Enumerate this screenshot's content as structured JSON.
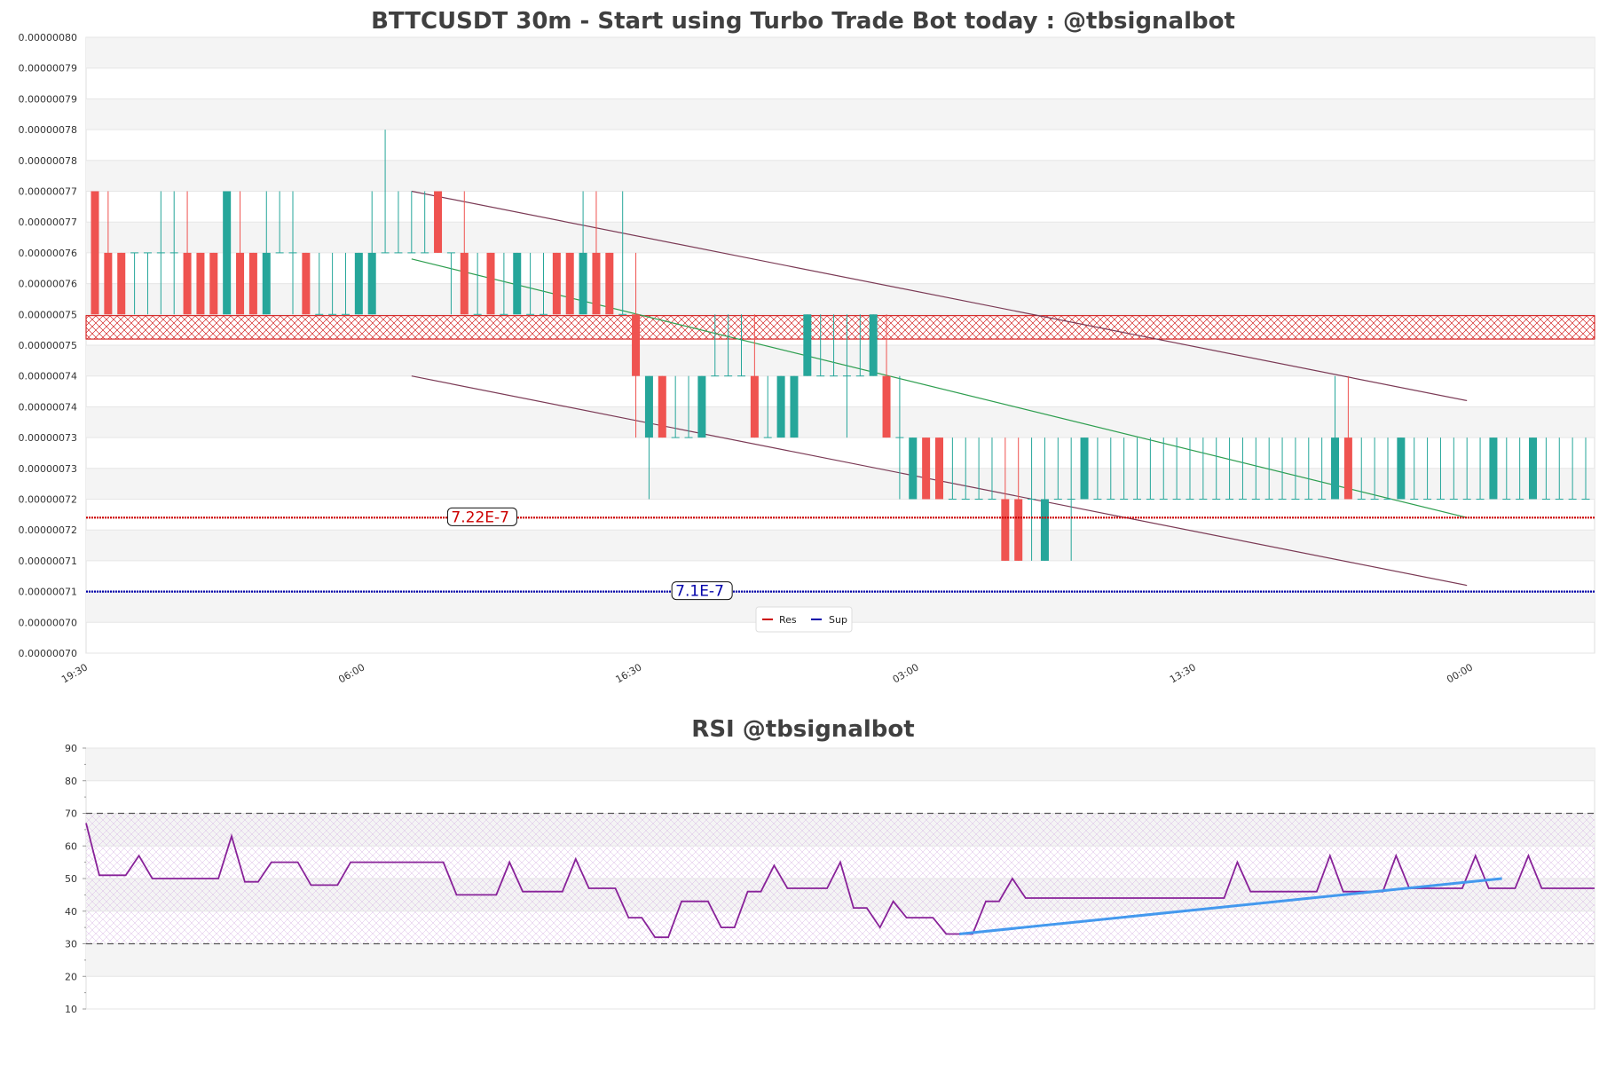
{
  "colors": {
    "bull": "#26a69a",
    "bear": "#ef5350",
    "res": "#cc0000",
    "sup": "#0000aa",
    "channel": "#7b3a55",
    "trend": "#2e9e4f",
    "rsi": "#882299",
    "rsi_trend": "#4499ee",
    "band_shade": "#f4f4f4",
    "title": "#404040"
  },
  "chart_data": [
    {
      "type": "candlestick",
      "title": "BTTCUSDT 30m - Start using Turbo Trade Bot today : @tbsignalbot",
      "ylim": [
        7e-07,
        8e-07
      ],
      "y_ticks": [
        {
          "value": 8e-07,
          "label": "0.00000080"
        },
        {
          "value": 7.95e-07,
          "label": "0.00000079"
        },
        {
          "value": 7.9e-07,
          "label": "0.00000079"
        },
        {
          "value": 7.85e-07,
          "label": "0.00000078"
        },
        {
          "value": 7.8e-07,
          "label": "0.00000078"
        },
        {
          "value": 7.75e-07,
          "label": "0.00000077"
        },
        {
          "value": 7.7e-07,
          "label": "0.00000077"
        },
        {
          "value": 7.65e-07,
          "label": "0.00000076"
        },
        {
          "value": 7.6e-07,
          "label": "0.00000076"
        },
        {
          "value": 7.55e-07,
          "label": "0.00000075"
        },
        {
          "value": 7.5e-07,
          "label": "0.00000075"
        },
        {
          "value": 7.45e-07,
          "label": "0.00000074"
        },
        {
          "value": 7.4e-07,
          "label": "0.00000074"
        },
        {
          "value": 7.35e-07,
          "label": "0.00000073"
        },
        {
          "value": 7.3e-07,
          "label": "0.00000073"
        },
        {
          "value": 7.25e-07,
          "label": "0.00000072"
        },
        {
          "value": 7.2e-07,
          "label": "0.00000072"
        },
        {
          "value": 7.15e-07,
          "label": "0.00000071"
        },
        {
          "value": 7.1e-07,
          "label": "0.00000071"
        },
        {
          "value": 7.05e-07,
          "label": "0.00000070"
        },
        {
          "value": 7e-07,
          "label": "0.00000070"
        }
      ],
      "x_ticks": [
        {
          "index": -0.5,
          "label": "19:30"
        },
        {
          "index": 20.5,
          "label": "06:00"
        },
        {
          "index": 41.5,
          "label": "16:30"
        },
        {
          "index": 62.5,
          "label": "03:00"
        },
        {
          "index": 83.5,
          "label": "13:30"
        },
        {
          "index": 104.5,
          "label": "00:00"
        }
      ],
      "candles": [
        [
          7.75,
          7.75,
          7.55,
          7.55
        ],
        [
          7.65,
          7.75,
          7.55,
          7.55
        ],
        [
          7.65,
          7.65,
          7.55,
          7.55
        ],
        [
          7.65,
          7.65,
          7.55,
          7.65
        ],
        [
          7.65,
          7.65,
          7.55,
          7.65
        ],
        [
          7.65,
          7.75,
          7.55,
          7.65
        ],
        [
          7.65,
          7.75,
          7.55,
          7.65
        ],
        [
          7.65,
          7.75,
          7.55,
          7.55
        ],
        [
          7.65,
          7.65,
          7.55,
          7.55
        ],
        [
          7.65,
          7.65,
          7.55,
          7.55
        ],
        [
          7.55,
          7.75,
          7.55,
          7.75
        ],
        [
          7.65,
          7.75,
          7.55,
          7.55
        ],
        [
          7.65,
          7.65,
          7.55,
          7.55
        ],
        [
          7.55,
          7.75,
          7.55,
          7.65
        ],
        [
          7.65,
          7.75,
          7.65,
          7.65
        ],
        [
          7.65,
          7.75,
          7.55,
          7.65
        ],
        [
          7.65,
          7.65,
          7.55,
          7.55
        ],
        [
          7.55,
          7.65,
          7.55,
          7.55
        ],
        [
          7.55,
          7.65,
          7.55,
          7.55
        ],
        [
          7.55,
          7.65,
          7.55,
          7.55
        ],
        [
          7.55,
          7.65,
          7.55,
          7.65
        ],
        [
          7.55,
          7.75,
          7.55,
          7.65
        ],
        [
          7.65,
          7.85,
          7.65,
          7.65
        ],
        [
          7.65,
          7.75,
          7.65,
          7.65
        ],
        [
          7.65,
          7.75,
          7.65,
          7.65
        ],
        [
          7.65,
          7.75,
          7.65,
          7.65
        ],
        [
          7.75,
          7.75,
          7.65,
          7.65
        ],
        [
          7.65,
          7.65,
          7.55,
          7.65
        ],
        [
          7.65,
          7.75,
          7.55,
          7.55
        ],
        [
          7.55,
          7.65,
          7.55,
          7.55
        ],
        [
          7.65,
          7.65,
          7.55,
          7.55
        ],
        [
          7.55,
          7.65,
          7.55,
          7.55
        ],
        [
          7.55,
          7.65,
          7.55,
          7.65
        ],
        [
          7.55,
          7.65,
          7.55,
          7.55
        ],
        [
          7.55,
          7.65,
          7.55,
          7.55
        ],
        [
          7.65,
          7.65,
          7.55,
          7.55
        ],
        [
          7.65,
          7.65,
          7.55,
          7.55
        ],
        [
          7.55,
          7.75,
          7.55,
          7.65
        ],
        [
          7.65,
          7.75,
          7.55,
          7.55
        ],
        [
          7.65,
          7.65,
          7.55,
          7.55
        ],
        [
          7.55,
          7.75,
          7.55,
          7.55
        ],
        [
          7.55,
          7.65,
          7.35,
          7.45
        ],
        [
          7.35,
          7.45,
          7.25,
          7.45
        ],
        [
          7.45,
          7.45,
          7.35,
          7.35
        ],
        [
          7.35,
          7.45,
          7.35,
          7.35
        ],
        [
          7.35,
          7.45,
          7.35,
          7.35
        ],
        [
          7.35,
          7.45,
          7.35,
          7.45
        ],
        [
          7.45,
          7.55,
          7.45,
          7.45
        ],
        [
          7.45,
          7.55,
          7.45,
          7.45
        ],
        [
          7.45,
          7.55,
          7.45,
          7.45
        ],
        [
          7.45,
          7.55,
          7.35,
          7.35
        ],
        [
          7.35,
          7.45,
          7.35,
          7.35
        ],
        [
          7.35,
          7.45,
          7.35,
          7.45
        ],
        [
          7.35,
          7.45,
          7.35,
          7.45
        ],
        [
          7.45,
          7.55,
          7.45,
          7.55
        ],
        [
          7.45,
          7.55,
          7.45,
          7.45
        ],
        [
          7.45,
          7.55,
          7.45,
          7.45
        ],
        [
          7.45,
          7.55,
          7.35,
          7.45
        ],
        [
          7.45,
          7.55,
          7.45,
          7.45
        ],
        [
          7.45,
          7.55,
          7.45,
          7.55
        ],
        [
          7.45,
          7.55,
          7.35,
          7.35
        ],
        [
          7.35,
          7.45,
          7.25,
          7.35
        ],
        [
          7.25,
          7.35,
          7.25,
          7.35
        ],
        [
          7.35,
          7.35,
          7.25,
          7.25
        ],
        [
          7.35,
          7.35,
          7.25,
          7.25
        ],
        [
          7.25,
          7.35,
          7.25,
          7.25
        ],
        [
          7.25,
          7.35,
          7.25,
          7.25
        ],
        [
          7.25,
          7.35,
          7.25,
          7.25
        ],
        [
          7.25,
          7.35,
          7.25,
          7.25
        ],
        [
          7.25,
          7.35,
          7.15,
          7.15
        ],
        [
          7.25,
          7.35,
          7.15,
          7.15
        ],
        [
          7.25,
          7.35,
          7.15,
          7.25
        ],
        [
          7.15,
          7.35,
          7.15,
          7.25
        ],
        [
          7.25,
          7.35,
          7.25,
          7.25
        ],
        [
          7.25,
          7.35,
          7.15,
          7.25
        ],
        [
          7.25,
          7.35,
          7.25,
          7.35
        ],
        [
          7.25,
          7.35,
          7.25,
          7.25
        ],
        [
          7.25,
          7.35,
          7.25,
          7.25
        ],
        [
          7.25,
          7.35,
          7.25,
          7.25
        ],
        [
          7.25,
          7.35,
          7.25,
          7.25
        ],
        [
          7.25,
          7.35,
          7.25,
          7.25
        ],
        [
          7.25,
          7.35,
          7.25,
          7.25
        ],
        [
          7.25,
          7.35,
          7.25,
          7.25
        ],
        [
          7.25,
          7.35,
          7.25,
          7.25
        ],
        [
          7.25,
          7.35,
          7.25,
          7.25
        ],
        [
          7.25,
          7.35,
          7.25,
          7.25
        ],
        [
          7.25,
          7.35,
          7.25,
          7.25
        ],
        [
          7.25,
          7.35,
          7.25,
          7.25
        ],
        [
          7.25,
          7.35,
          7.25,
          7.25
        ],
        [
          7.25,
          7.35,
          7.25,
          7.25
        ],
        [
          7.25,
          7.35,
          7.25,
          7.25
        ],
        [
          7.25,
          7.35,
          7.25,
          7.25
        ],
        [
          7.25,
          7.35,
          7.25,
          7.25
        ],
        [
          7.25,
          7.35,
          7.25,
          7.25
        ],
        [
          7.25,
          7.45,
          7.25,
          7.35
        ],
        [
          7.35,
          7.45,
          7.25,
          7.25
        ],
        [
          7.25,
          7.35,
          7.25,
          7.25
        ],
        [
          7.25,
          7.35,
          7.25,
          7.25
        ],
        [
          7.25,
          7.35,
          7.25,
          7.25
        ],
        [
          7.25,
          7.35,
          7.25,
          7.35
        ],
        [
          7.25,
          7.35,
          7.25,
          7.25
        ],
        [
          7.25,
          7.35,
          7.25,
          7.25
        ],
        [
          7.25,
          7.35,
          7.25,
          7.25
        ],
        [
          7.25,
          7.35,
          7.25,
          7.25
        ],
        [
          7.25,
          7.35,
          7.25,
          7.25
        ],
        [
          7.25,
          7.35,
          7.25,
          7.25
        ],
        [
          7.25,
          7.35,
          7.25,
          7.35
        ],
        [
          7.25,
          7.35,
          7.25,
          7.25
        ],
        [
          7.25,
          7.35,
          7.25,
          7.25
        ],
        [
          7.25,
          7.35,
          7.25,
          7.35
        ],
        [
          7.25,
          7.35,
          7.25,
          7.25
        ],
        [
          7.25,
          7.35,
          7.25,
          7.25
        ],
        [
          7.25,
          7.35,
          7.25,
          7.25
        ],
        [
          7.25,
          7.35,
          7.25,
          7.25
        ]
      ],
      "candle_scale": 1e-07,
      "candle_fields": [
        "open",
        "high",
        "low",
        "close"
      ],
      "resistance_zone": [
        7.51e-07,
        7.548e-07
      ],
      "levels": [
        {
          "name": "Res",
          "value": 7.22e-07,
          "label": "7.22E-7",
          "label_index": 27
        },
        {
          "name": "Sup",
          "value": 7.1e-07,
          "label": "7.1E-7",
          "label_index": 44
        }
      ],
      "channel_upper": [
        [
          24,
          7.75e-07
        ],
        [
          104,
          7.41e-07
        ]
      ],
      "channel_lower": [
        [
          24,
          7.45e-07
        ],
        [
          104,
          7.11e-07
        ]
      ],
      "trend_line": [
        [
          24,
          7.64e-07
        ],
        [
          104,
          7.22e-07
        ]
      ],
      "legend": [
        {
          "label": "Res",
          "color_key": "res"
        },
        {
          "label": "Sup",
          "color_key": "sup"
        }
      ]
    },
    {
      "type": "line",
      "title": "RSI @tbsignalbot",
      "ylim": [
        10,
        90
      ],
      "y_ticks": [
        90,
        80,
        70,
        60,
        50,
        40,
        30,
        20,
        10
      ],
      "overbought": 70,
      "oversold": 30,
      "values": [
        67,
        51,
        51,
        51,
        57,
        50,
        50,
        50,
        50,
        50,
        50,
        63,
        49,
        49,
        55,
        55,
        55,
        48,
        48,
        48,
        55,
        55,
        55,
        55,
        55,
        55,
        55,
        55,
        45,
        45,
        45,
        45,
        55,
        46,
        46,
        46,
        46,
        56,
        47,
        47,
        47,
        38,
        38,
        32,
        32,
        43,
        43,
        43,
        35,
        35,
        46,
        46,
        54,
        47,
        47,
        47,
        47,
        55,
        41,
        41,
        35,
        43,
        38,
        38,
        38,
        33,
        33,
        33,
        43,
        43,
        50,
        44,
        44,
        44,
        44,
        44,
        44,
        44,
        44,
        44,
        44,
        44,
        44,
        44,
        44,
        44,
        44,
        55,
        46,
        46,
        46,
        46,
        46,
        46,
        57,
        46,
        46,
        46,
        46,
        57,
        47,
        47,
        47,
        47,
        47,
        57,
        47,
        47,
        47,
        57,
        47,
        47,
        47,
        47,
        47
      ],
      "trend_line": [
        [
          66,
          33
        ],
        [
          107,
          50
        ]
      ]
    }
  ]
}
